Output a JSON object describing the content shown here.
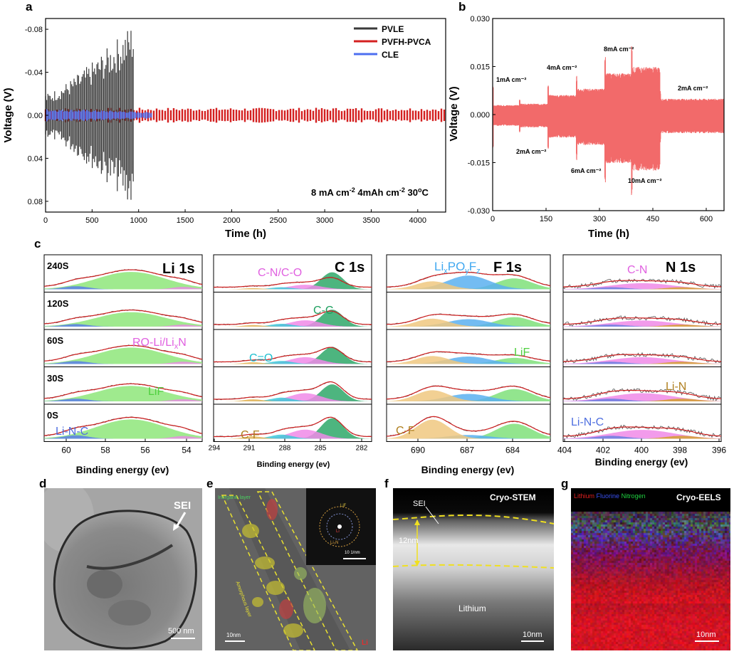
{
  "panel_labels": {
    "a": "a",
    "b": "b",
    "c": "c",
    "d": "d",
    "e": "e",
    "f": "f",
    "g": "g"
  },
  "chart_data": [
    {
      "type": "line",
      "panel": "a",
      "xlabel": "Time (h)",
      "ylabel": "Voltage (V)",
      "xlim": [
        0,
        4300
      ],
      "ylim": [
        -0.09,
        0.09
      ],
      "y_inverted": true,
      "xticks": [
        "0",
        "500",
        "1000",
        "1500",
        "2000",
        "2500",
        "3000",
        "3500",
        "4000"
      ],
      "yticks": [
        "-0.08",
        "-0.04",
        "0.00",
        "0.04",
        "0.08"
      ],
      "annotation": "8 mA cm⁻² 4mAh cm⁻² 30°C",
      "annotation_parts": {
        "a": "8 mA cm",
        "b": "-2",
        "c": " 4mAh cm",
        "d": "-2",
        "e": " 30",
        "f": "o",
        "g": "C"
      },
      "legend_position": "top-right",
      "series": [
        {
          "name": "PVLE",
          "color": "#3a3a3a",
          "x_end": 950,
          "amp_start": 0.02,
          "amp_end": 0.088
        },
        {
          "name": "PVFH-PVCA",
          "color": "#d42020",
          "x_end": 4300,
          "amp_start": 0.007,
          "amp_end": 0.007
        },
        {
          "name": "CLE",
          "color": "#4d6ff0",
          "x_end": 1150,
          "amp_start": 0.006,
          "amp_end": 0.003
        }
      ]
    },
    {
      "type": "line",
      "panel": "b",
      "xlabel": "Time (h)",
      "ylabel": "Voltage (V)",
      "xlim": [
        0,
        650
      ],
      "ylim": [
        -0.03,
        0.03
      ],
      "xticks": [
        "0",
        "150",
        "300",
        "450",
        "600"
      ],
      "yticks": [
        "0.030",
        "0.015",
        "0.000",
        "-0.015",
        "-0.030"
      ],
      "color": "#f26a6a",
      "segments": [
        {
          "x0": 0,
          "x1": 75,
          "amp": 0.0035,
          "label": "1mA cm⁻²"
        },
        {
          "x0": 75,
          "x1": 155,
          "amp": 0.004,
          "label": "2mA cm⁻²"
        },
        {
          "x0": 155,
          "x1": 235,
          "amp": 0.0072,
          "label": "4mA cm⁻²"
        },
        {
          "x0": 235,
          "x1": 315,
          "amp": 0.0095,
          "label": "6mA cm⁻²"
        },
        {
          "x0": 315,
          "x1": 390,
          "amp": 0.0152,
          "label": "8mA cm⁻²"
        },
        {
          "x0": 390,
          "x1": 470,
          "amp": 0.0175,
          "label": "10mA cm⁻²"
        },
        {
          "x0": 470,
          "x1": 650,
          "amp": 0.0058,
          "label": "2mA cm⁻²"
        }
      ]
    },
    {
      "type": "line",
      "panel": "c",
      "subpanels": [
        {
          "title": "Li 1s",
          "xlabel": "Binding energy (ev)",
          "xticks": [
            "60",
            "58",
            "56",
            "54"
          ],
          "peaks": [
            {
              "name": "LiF",
              "color": "#8ee67a"
            },
            {
              "name": "Li-N-C",
              "color": "#5b7fe8"
            },
            {
              "name": "RO-Li/LixN",
              "color": "#e68ee0"
            }
          ]
        },
        {
          "title": "C 1s",
          "xlabel": "Binding energy (ev)",
          "xticks": [
            "294",
            "291",
            "288",
            "285",
            "282"
          ],
          "peaks": [
            {
              "name": "C-C",
              "color": "#2ea868"
            },
            {
              "name": "C-N/C-O",
              "color": "#f08ae8"
            },
            {
              "name": "C=O",
              "color": "#40c8d8"
            },
            {
              "name": "C-F",
              "color": "#e0b050"
            }
          ]
        },
        {
          "title": "F 1s",
          "xlabel": "Binding energy (ev)",
          "xticks": [
            "690",
            "687",
            "684"
          ],
          "peaks": [
            {
              "name": "LiF",
              "color": "#7fe07a"
            },
            {
              "name": "LixPOyFz",
              "color": "#5ab0f0"
            },
            {
              "name": "C-F",
              "color": "#f0c880"
            }
          ]
        },
        {
          "title": "N 1s",
          "xlabel": "Binding energy (ev)",
          "xticks": [
            "404",
            "402",
            "400",
            "398",
            "396"
          ],
          "peaks": [
            {
              "name": "C-N",
              "color": "#f08ae8"
            },
            {
              "name": "Li-N",
              "color": "#d4a030"
            },
            {
              "name": "Li-N-C",
              "color": "#6b7fe0"
            }
          ]
        }
      ],
      "rows": [
        "240S",
        "120S",
        "60S",
        "30S",
        "0S"
      ]
    }
  ],
  "panel_c_text": {
    "li_title": "Li 1s",
    "c_title": "C 1s",
    "f_title": "F 1s",
    "n_title": "N 1s",
    "rows": [
      "240S",
      "120S",
      "60S",
      "30S",
      "0S"
    ],
    "li_ro": "RO-Li/Li",
    "li_ro_sub": "x",
    "li_ro_end": "N",
    "li_lif": "LiF",
    "li_lnc": "Li-N-C",
    "c_cnco": "C-N/C-O",
    "c_cc": "C-C",
    "c_co": "C=O",
    "c_cf": "C-F",
    "f_lipof": "Li",
    "f_x": "x",
    "f_po": "PO",
    "f_y": "y",
    "f_f": "F",
    "f_z": "z",
    "f_lif": "LiF",
    "f_cf": "C-F",
    "n_cn": "C-N",
    "n_lin": "Li-N",
    "n_linc": "Li-N-C",
    "xlabel": "Binding energy (ev)"
  },
  "panel_d": {
    "sei": "SEI",
    "scale": "500 nm"
  },
  "panel_e": {
    "scale": "10nm",
    "li": "Li",
    "inset_scale": "10  1/nm",
    "inset_labels": [
      "LiF",
      "Li",
      "Li₃N"
    ],
    "layer1": "Inorganic layer",
    "layer2": "Amorphous layer"
  },
  "panel_f": {
    "title": "Cryo-STEM",
    "sei": "SEI",
    "thickness": "12nm",
    "lithium": "Lithium",
    "scale": "10nm"
  },
  "panel_g": {
    "title": "Cryo-EELS",
    "li": "Lithium",
    "f": "Fluorine",
    "n": "Nitrogen",
    "scale": "10nm",
    "colors": {
      "li": "#e02020",
      "f": "#3040e0",
      "n": "#20c040"
    }
  }
}
